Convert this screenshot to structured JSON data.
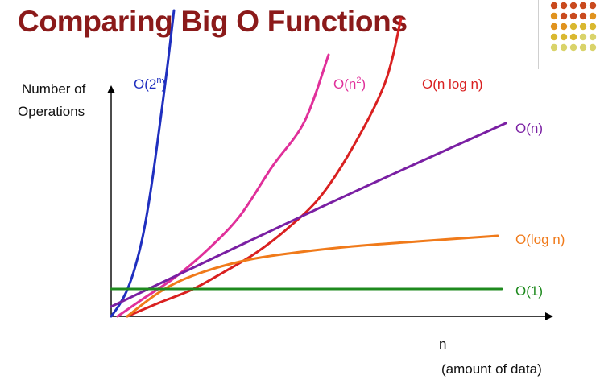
{
  "title": "Comparing Big O Functions",
  "decor_dots": {
    "colors": [
      "#c94a1e",
      "#e0931f",
      "#d9b830",
      "#d9d36a"
    ]
  },
  "chart_data": {
    "type": "line",
    "title": "Comparing Big O Functions",
    "ylabel_line1": "Number of",
    "ylabel_line2": "Operations",
    "xlabel_line1": "n",
    "xlabel_line2": "(amount of data)",
    "grid": false,
    "legend": "inline labels at curve ends",
    "series": [
      {
        "id": "o2n",
        "name": "O(2",
        "sup": "n",
        "close": ")",
        "color": "#1f2fbf",
        "x": [
          0,
          10,
          20,
          30,
          40,
          50,
          60,
          70,
          78
        ],
        "y": [
          0,
          14,
          33,
          62,
          103,
          162,
          235,
          312,
          380
        ]
      },
      {
        "id": "on2",
        "name": "O(n",
        "sup": "2",
        "close": ")",
        "color": "#e0309a",
        "x": [
          8,
          40,
          80,
          120,
          160,
          200,
          240,
          270
        ],
        "y": [
          0,
          22,
          49,
          83,
          125,
          186,
          242,
          325
        ]
      },
      {
        "id": "onlogn",
        "name": "O(n log n)",
        "sup": "",
        "close": "",
        "color": "#d92020",
        "x": [
          20,
          60,
          100,
          140,
          180,
          220,
          260,
          300,
          340,
          360
        ],
        "y": [
          0,
          17,
          33,
          55,
          79,
          110,
          149,
          210,
          290,
          370
        ]
      },
      {
        "id": "on",
        "name": "O(n)",
        "sup": "",
        "close": "",
        "color": "#7a1fa3",
        "x": [
          0,
          270,
          490
        ],
        "y": [
          12,
          140,
          240
        ]
      },
      {
        "id": "ologn",
        "name": "O(log n)",
        "sup": "",
        "close": "",
        "color": "#f07a1a",
        "x": [
          20,
          60,
          100,
          160,
          220,
          300,
          380,
          480
        ],
        "y": [
          0,
          30,
          50,
          68,
          78,
          87,
          93,
          100
        ]
      },
      {
        "id": "o1",
        "name": "O(1)",
        "sup": "",
        "close": "",
        "color": "#1e8a1e",
        "x": [
          0,
          485
        ],
        "y": [
          34,
          34
        ]
      }
    ]
  }
}
